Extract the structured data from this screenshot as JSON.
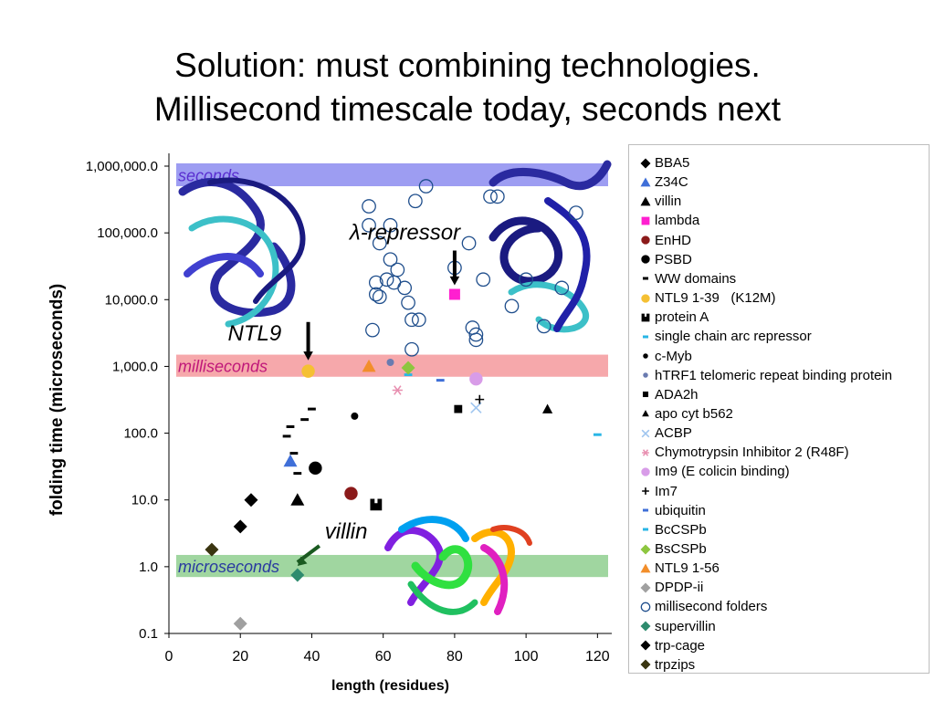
{
  "title": {
    "line1": "Solution: must combining technologies.",
    "line2": "Millisecond timescale today, seconds next"
  },
  "chart_data": {
    "type": "scatter",
    "title": "Solution: must combining technologies. Millisecond timescale today, seconds next",
    "xlabel": "length (residues)",
    "ylabel": "folding time (microseconds)",
    "xlim": [
      0,
      124
    ],
    "ylim": [
      0.1,
      1000000
    ],
    "yscale": "log",
    "xticks": [
      "0",
      "20",
      "40",
      "60",
      "80",
      "100",
      "120"
    ],
    "yticks": [
      "0.1",
      "1.0",
      "10.0",
      "100.0",
      "1,000.0",
      "10,000.0",
      "100,000.0",
      "1,000,000.0"
    ],
    "legend_position": "right",
    "bands": [
      {
        "label": "seconds",
        "ymin": 500000,
        "ymax": 1100000,
        "color": "#8c8cf0",
        "label_color": "#5a2fd0"
      },
      {
        "label": "milliseconds",
        "ymin": 700,
        "ymax": 1500,
        "color": "#f4999c",
        "label_color": "#c0187a"
      },
      {
        "label": "microseconds",
        "ymin": 0.7,
        "ymax": 1.5,
        "color": "#8fcf8f",
        "label_color": "#2a3aa0"
      }
    ],
    "annotations": [
      {
        "text": "λ-repressor",
        "x": 80,
        "y": 12000
      },
      {
        "text": "NTL9",
        "x": 39,
        "y": 900
      },
      {
        "text": "villin",
        "x": 36,
        "y": 0.75
      }
    ],
    "series": [
      {
        "name": "BBA5",
        "marker": "diamond",
        "color": "#000000",
        "x": [
          23
        ],
        "y": [
          10
        ]
      },
      {
        "name": "Z34C",
        "marker": "triangle",
        "color": "#3f6fd8",
        "x": [
          34
        ],
        "y": [
          38
        ]
      },
      {
        "name": "villin",
        "marker": "triangle",
        "color": "#000000",
        "x": [
          36
        ],
        "y": [
          10
        ]
      },
      {
        "name": "lambda",
        "marker": "square",
        "color": "#ff1fd0",
        "x": [
          80
        ],
        "y": [
          12000
        ]
      },
      {
        "name": "EnHD",
        "marker": "circle",
        "color": "#8b1a1a",
        "x": [
          51
        ],
        "y": [
          12.5
        ]
      },
      {
        "name": "PSBD",
        "marker": "circle",
        "color": "#000000",
        "x": [
          41
        ],
        "y": [
          30
        ]
      },
      {
        "name": "WW domains",
        "marker": "dash",
        "color": "#000000",
        "x": [
          33,
          34,
          35,
          36,
          38,
          40
        ],
        "y": [
          90,
          125,
          50,
          25,
          160,
          230
        ]
      },
      {
        "name": "NTL9 1-39   (K12M)",
        "marker": "circle",
        "color": "#f5c033",
        "x": [
          39
        ],
        "y": [
          850
        ]
      },
      {
        "name": "protein A",
        "marker": "square-notch",
        "color": "#000000",
        "x": [
          58
        ],
        "y": [
          8.5
        ]
      },
      {
        "name": "single chain arc repressor",
        "marker": "dash",
        "color": "#29b6e6",
        "x": [
          120
        ],
        "y": [
          95
        ]
      },
      {
        "name": "c-Myb",
        "marker": "circle-small",
        "color": "#000000",
        "x": [
          52
        ],
        "y": [
          180
        ]
      },
      {
        "name": "hTRF1 telomeric repeat binding protein",
        "marker": "circle-small",
        "color": "#6a7bb0",
        "x": [
          62
        ],
        "y": [
          1150
        ]
      },
      {
        "name": "ADA2h",
        "marker": "square-small",
        "color": "#000000",
        "x": [
          81
        ],
        "y": [
          230
        ]
      },
      {
        "name": "apo cyt b562",
        "marker": "triangle-small",
        "color": "#000000",
        "x": [
          106
        ],
        "y": [
          230
        ]
      },
      {
        "name": "ACBP",
        "marker": "x",
        "color": "#9fc5ef",
        "x": [
          86
        ],
        "y": [
          240
        ]
      },
      {
        "name": "Chymotrypsin Inhibitor 2 (R48F)",
        "marker": "asterisk",
        "color": "#e88fb0",
        "x": [
          64
        ],
        "y": [
          440
        ]
      },
      {
        "name": "Im9 (E colicin binding)",
        "marker": "circle",
        "color": "#d89ce8",
        "x": [
          86
        ],
        "y": [
          650
        ]
      },
      {
        "name": "Im7",
        "marker": "plus",
        "color": "#000000",
        "x": [
          87
        ],
        "y": [
          320
        ]
      },
      {
        "name": "ubiquitin",
        "marker": "dash",
        "color": "#3f6fd8",
        "x": [
          76
        ],
        "y": [
          620
        ]
      },
      {
        "name": "BcCSPb",
        "marker": "dash",
        "color": "#29b6e6",
        "x": [
          67
        ],
        "y": [
          750
        ]
      },
      {
        "name": "BsCSPb",
        "marker": "diamond",
        "color": "#8dc63f",
        "x": [
          67
        ],
        "y": [
          950
        ]
      },
      {
        "name": "NTL9 1-56",
        "marker": "triangle",
        "color": "#f28e2b",
        "x": [
          56
        ],
        "y": [
          1000
        ]
      },
      {
        "name": "DPDP-ii",
        "marker": "diamond",
        "color": "#a0a0a0",
        "x": [
          20
        ],
        "y": [
          0.14
        ]
      },
      {
        "name": "millisecond folders",
        "marker": "circle-open",
        "color": "#1f4e8c",
        "x": [
          57,
          56,
          56,
          58,
          58,
          59,
          59,
          61,
          62,
          62,
          63,
          64,
          66,
          67,
          68,
          68,
          69,
          70,
          72,
          80,
          84,
          85,
          86,
          86,
          88,
          90,
          92,
          96,
          100,
          105,
          110,
          114
        ],
        "y": [
          3500,
          250000,
          130000,
          12000,
          18000,
          11000,
          70000,
          20000,
          40000,
          130000,
          18000,
          28000,
          15000,
          9000,
          1800,
          5000,
          300000,
          5000,
          500000,
          30000,
          70000,
          3800,
          3000,
          2500,
          20000,
          350000,
          350000,
          8000,
          20000,
          4000,
          15000,
          200000
        ]
      },
      {
        "name": "supervillin",
        "marker": "diamond",
        "color": "#2e8b6e",
        "x": [
          36
        ],
        "y": [
          0.75
        ]
      },
      {
        "name": "trp-cage",
        "marker": "diamond",
        "color": "#000000",
        "x": [
          20
        ],
        "y": [
          4
        ]
      },
      {
        "name": "trpzips",
        "marker": "diamond",
        "color": "#3a3510",
        "x": [
          12
        ],
        "y": [
          1.8
        ]
      }
    ]
  }
}
